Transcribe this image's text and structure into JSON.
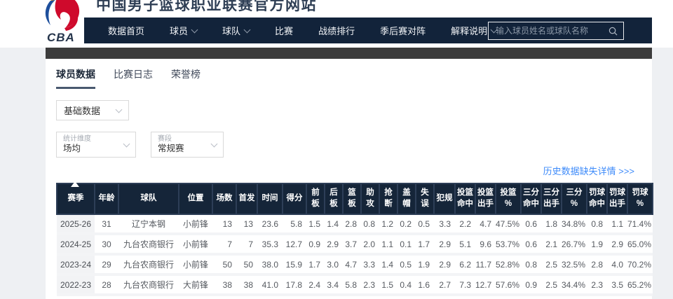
{
  "page": {
    "title": "中国男子篮球职业联赛官方网站",
    "logo_text": "CBA"
  },
  "nav": {
    "items": [
      {
        "label": "数据首页",
        "dropdown": false
      },
      {
        "label": "球员",
        "dropdown": true
      },
      {
        "label": "球队",
        "dropdown": true
      },
      {
        "label": "比赛",
        "dropdown": false
      },
      {
        "label": "战绩排行",
        "dropdown": false
      },
      {
        "label": "季后赛对阵",
        "dropdown": false
      },
      {
        "label": "解释说明",
        "dropdown": true
      }
    ],
    "search_placeholder": "输入球员姓名或球队名称"
  },
  "tabs": [
    {
      "label": "球员数据",
      "active": true
    },
    {
      "label": "比赛日志",
      "active": false
    },
    {
      "label": "荣誉榜",
      "active": false
    }
  ],
  "filters": {
    "data_type": {
      "value": "基础数据"
    },
    "stat_dimension": {
      "label": "统计维度",
      "value": "场均"
    },
    "stage": {
      "label": "赛段",
      "value": "常规赛"
    }
  },
  "history_link": "历史数据缺失详情 >>>",
  "table": {
    "columns": [
      "赛季",
      "年龄",
      "球队",
      "位置",
      "场数",
      "首发",
      "时间",
      "得分",
      "前板",
      "后板",
      "篮板",
      "助攻",
      "抢断",
      "盖帽",
      "失误",
      "犯规",
      "投篮命中",
      "投篮出手",
      "投篮%",
      "三分命中",
      "三分出手",
      "三分%",
      "罚球命中",
      "罚球出手",
      "罚球%"
    ],
    "rows": [
      [
        "2025-26",
        "31",
        "辽宁本钢",
        "小前锋",
        "13",
        "13",
        "23.6",
        "5.8",
        "1.5",
        "1.4",
        "2.8",
        "0.8",
        "1.2",
        "0.2",
        "0.5",
        "3.3",
        "2.2",
        "4.7",
        "47.5%",
        "0.6",
        "1.8",
        "34.8%",
        "0.8",
        "1.1",
        "71.4%"
      ],
      [
        "2024-25",
        "30",
        "九台农商银行",
        "小前锋",
        "7",
        "7",
        "35.3",
        "12.7",
        "0.9",
        "2.9",
        "3.7",
        "2.0",
        "1.1",
        "0.1",
        "1.7",
        "2.9",
        "5.1",
        "9.6",
        "53.7%",
        "0.6",
        "2.1",
        "26.7%",
        "1.9",
        "2.9",
        "65.0%"
      ],
      [
        "2023-24",
        "29",
        "九台农商银行",
        "小前锋",
        "50",
        "50",
        "38.0",
        "15.9",
        "1.7",
        "3.0",
        "4.7",
        "3.3",
        "1.4",
        "0.5",
        "1.9",
        "2.9",
        "6.2",
        "11.7",
        "52.8%",
        "0.8",
        "2.5",
        "32.5%",
        "2.8",
        "4.0",
        "70.2%"
      ],
      [
        "2022-23",
        "28",
        "九台农商银行",
        "大前锋",
        "38",
        "38",
        "41.0",
        "17.8",
        "2.4",
        "3.4",
        "5.8",
        "2.3",
        "1.5",
        "0.4",
        "1.6",
        "2.7",
        "7.3",
        "12.7",
        "57.6%",
        "0.9",
        "2.5",
        "34.4%",
        "2.3",
        "3.5",
        "65.2%"
      ]
    ]
  },
  "colors": {
    "nav_bg": "#12233a",
    "table_header_bg": "#152539",
    "sub_header_strip": "#3c3c3c",
    "accent_link": "#3e8bfa",
    "logo_red": "#cf0a2c",
    "logo_blue": "#1e4f9c",
    "logo_yellow": "#f0a500"
  }
}
